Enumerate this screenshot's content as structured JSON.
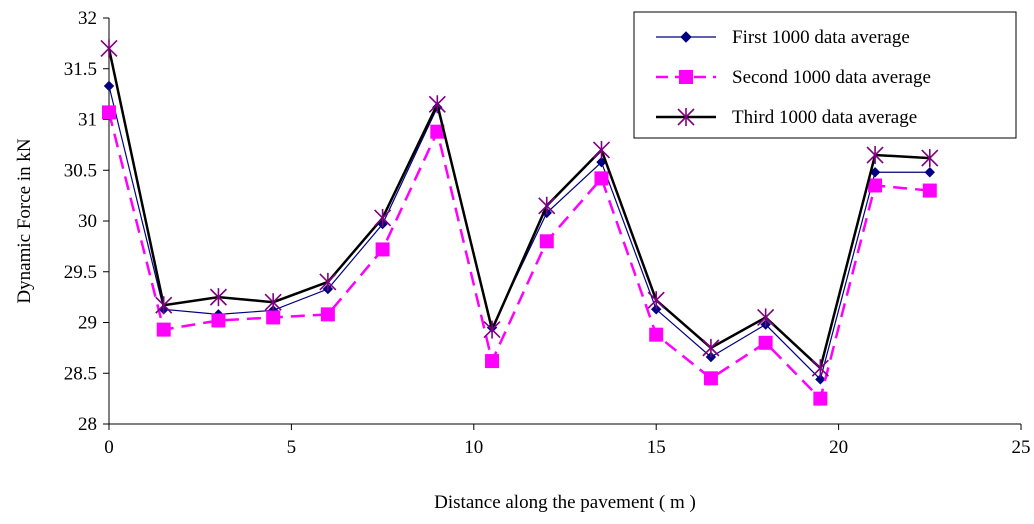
{
  "chart_data": {
    "type": "line",
    "xlabel": "Distance along the pavement ( m )",
    "ylabel": "Dynamic Force in kN",
    "xlim": [
      0,
      25
    ],
    "ylim": [
      28,
      32
    ],
    "xticks": [
      "0",
      "5",
      "10",
      "15",
      "20",
      "25"
    ],
    "yticks": [
      "28",
      "28.5",
      "29",
      "29.5",
      "30",
      "30.5",
      "31",
      "31.5",
      "32"
    ],
    "grid": false,
    "legend_position": "top-right",
    "x": [
      0,
      1.5,
      3,
      4.5,
      6,
      7.5,
      9,
      10.5,
      12,
      13.5,
      15,
      16.5,
      18,
      19.5,
      21,
      22.5
    ],
    "series": [
      {
        "name": "First 1000 data average",
        "color": "#000080",
        "line_style": "solid-thin",
        "marker": "diamond",
        "values": [
          31.33,
          29.13,
          29.08,
          29.12,
          29.33,
          29.97,
          31.12,
          28.95,
          30.08,
          30.58,
          29.13,
          28.66,
          28.98,
          28.44,
          30.48,
          30.48
        ]
      },
      {
        "name": "Second 1000 data average",
        "color": "#ff00ff",
        "line_style": "dashed",
        "marker": "square",
        "values": [
          31.07,
          28.93,
          29.02,
          29.05,
          29.08,
          29.72,
          30.88,
          28.62,
          29.8,
          30.42,
          28.88,
          28.45,
          28.8,
          28.25,
          30.35,
          30.3
        ]
      },
      {
        "name": "Third 1000 data average",
        "color": "#000000",
        "line_style": "solid-thick",
        "marker": "star",
        "marker_color": "#800080",
        "values": [
          31.7,
          29.17,
          29.25,
          29.2,
          29.4,
          30.03,
          31.15,
          28.93,
          30.15,
          30.7,
          29.22,
          28.75,
          29.05,
          28.55,
          30.65,
          30.62
        ]
      }
    ]
  }
}
